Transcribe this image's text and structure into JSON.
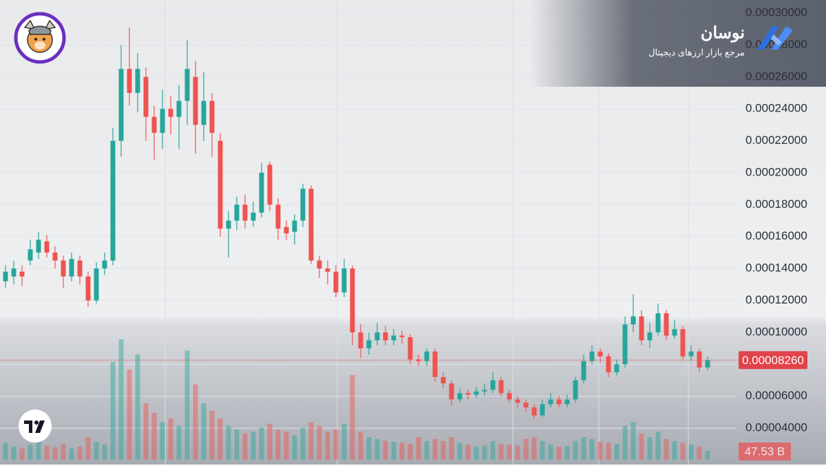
{
  "chart_data": {
    "type": "candlestick",
    "watermark": {
      "title": "نوسان",
      "subtitle": "مرجع بازار ارزهای دیجیتال"
    },
    "up_color": "#26a69a",
    "down_color": "#ef5350",
    "grid": true,
    "ylim": [
      1.72e-05,
      0.0003082
    ],
    "yticks": [
      {
        "value": 0.0003,
        "label": "0.00030000"
      },
      {
        "value": 0.00028,
        "label": "0.00028000"
      },
      {
        "value": 0.00026,
        "label": "0.00026000"
      },
      {
        "value": 0.00024,
        "label": "0.00024000"
      },
      {
        "value": 0.00022,
        "label": "0.00022000"
      },
      {
        "value": 0.0002,
        "label": "0.00020000"
      },
      {
        "value": 0.00018,
        "label": "0.00018000"
      },
      {
        "value": 0.00016,
        "label": "0.00016000"
      },
      {
        "value": 0.00014,
        "label": "0.00014000"
      },
      {
        "value": 0.00012,
        "label": "0.00012000"
      },
      {
        "value": 0.0001,
        "label": "0.00010000"
      },
      {
        "value": 8e-05,
        "label": "0.00008000"
      },
      {
        "value": 6e-05,
        "label": "0.00006000"
      },
      {
        "value": 4e-05,
        "label": "0.00004000"
      }
    ],
    "last_price": {
      "value": 8.26e-05,
      "label": "0.00008260"
    },
    "last_volume": {
      "value": 47.53,
      "label": "47.53 B"
    },
    "open": [
      0.000132,
      0.000135,
      0.000138,
      0.000145,
      0.00015,
      0.000157,
      0.00015,
      0.000145,
      0.000135,
      0.000145,
      0.000135,
      0.00012,
      0.00014,
      0.000145,
      0.00022,
      0.000265,
      0.00025,
      0.00026,
      0.000235,
      0.000225,
      0.00024,
      0.000235,
      0.000245,
      0.00026,
      0.00023,
      0.000245,
      0.00022,
      0.000165,
      0.00017,
      0.00018,
      0.00017,
      0.000175,
      0.000205,
      0.00018,
      0.000166,
      0.000163,
      0.00017,
      0.00019,
      0.000145,
      0.00014,
      0.000138,
      0.000125,
      0.00014,
      0.0001,
      9e-05,
      9.5e-05,
      0.0001,
      9.5e-05,
      9.8e-05,
      9.7e-05,
      8.3e-05,
      8.2e-05,
      8.8e-05,
      7.2e-05,
      6.8e-05,
      5.8e-05,
      6.2e-05,
      6.1e-05,
      6.3e-05,
      6.4e-05,
      7e-05,
      6.2e-05,
      5.8e-05,
      5.6e-05,
      5.3e-05,
      4.8e-05,
      5.5e-05,
      5.8e-05,
      5.5e-05,
      5.8e-05,
      7e-05,
      8.2e-05,
      8.8e-05,
      8.5e-05,
      7.5e-05,
      8e-05,
      0.000105,
      0.00011,
      9.5e-05,
      0.0001,
      0.000112,
      9.8e-05,
      0.000102,
      8.5e-05,
      8.8e-05,
      7.8e-05
    ],
    "high": [
      0.000142,
      0.000145,
      0.000142,
      0.000158,
      0.000163,
      0.000161,
      0.000154,
      0.000148,
      0.00015,
      0.000148,
      0.000138,
      0.000144,
      0.00015,
      0.000228,
      0.00028,
      0.000291,
      0.000275,
      0.000266,
      0.000242,
      0.000252,
      0.000248,
      0.000255,
      0.000283,
      0.00027,
      0.000263,
      0.00025,
      0.000225,
      0.000176,
      0.000185,
      0.000186,
      0.000182,
      0.000206,
      0.000207,
      0.000184,
      0.00017,
      0.000174,
      0.000193,
      0.000192,
      0.000148,
      0.000145,
      0.000142,
      0.000146,
      0.000142,
      0.000105,
      0.0001,
      0.000106,
      0.000104,
      0.000102,
      0.000101,
      9.9e-05,
      8.6e-05,
      9e-05,
      9e-05,
      7.5e-05,
      7e-05,
      6.5e-05,
      6.4e-05,
      6.6e-05,
      6.8e-05,
      7.5e-05,
      7.2e-05,
      6.4e-05,
      6e-05,
      5.8e-05,
      5.5e-05,
      5.8e-05,
      6.2e-05,
      6e-05,
      6.1e-05,
      7.2e-05,
      8.6e-05,
      9.2e-05,
      9e-05,
      8.7e-05,
      8.3e-05,
      0.00011,
      0.000124,
      0.000114,
      0.000106,
      0.000118,
      0.000114,
      0.000108,
      0.000104,
      9.2e-05,
      9e-05,
      8.5e-05
    ],
    "low": [
      0.000128,
      0.00013,
      0.000129,
      0.000142,
      0.000146,
      0.000147,
      0.00014,
      0.000128,
      0.000132,
      0.00013,
      0.000116,
      0.000118,
      0.000136,
      0.000142,
      0.00021,
      0.000242,
      0.000238,
      0.00022,
      0.000208,
      0.000215,
      0.000224,
      0.000215,
      0.00023,
      0.000212,
      0.00022,
      0.00021,
      0.00016,
      0.000147,
      0.000164,
      0.000165,
      0.000166,
      0.000172,
      0.000176,
      0.000158,
      0.000158,
      0.000155,
      0.000166,
      0.000143,
      0.000134,
      0.00013,
      0.000122,
      0.000122,
      9.2e-05,
      8.4e-05,
      8.6e-05,
      9.2e-05,
      9.2e-05,
      9.2e-05,
      9.3e-05,
      8e-05,
      7.9e-05,
      7.9e-05,
      6.9e-05,
      6.5e-05,
      5.4e-05,
      5.6e-05,
      5.8e-05,
      5.9e-05,
      6e-05,
      6.2e-05,
      6e-05,
      5.6e-05,
      5.3e-05,
      5e-05,
      4.6e-05,
      4.7e-05,
      5.3e-05,
      5.3e-05,
      5.3e-05,
      5.6e-05,
      6.8e-05,
      8e-05,
      8.1e-05,
      7.2e-05,
      7.3e-05,
      7.8e-05,
      0.0001,
      9.2e-05,
      9e-05,
      9.8e-05,
      9.5e-05,
      9.6e-05,
      8.3e-05,
      8.2e-05,
      7.5e-05,
      7.6e-05
    ],
    "close": [
      0.000138,
      0.00014,
      0.000135,
      0.000152,
      0.000158,
      0.00015,
      0.000145,
      0.000135,
      0.000146,
      0.000135,
      0.00012,
      0.00014,
      0.000145,
      0.00022,
      0.000265,
      0.00025,
      0.000265,
      0.000235,
      0.000225,
      0.00024,
      0.000235,
      0.000245,
      0.000265,
      0.00023,
      0.000245,
      0.000225,
      0.000165,
      0.00017,
      0.00018,
      0.00017,
      0.000175,
      0.0002,
      0.00018,
      0.000165,
      0.000162,
      0.00017,
      0.00019,
      0.000145,
      0.00014,
      0.000138,
      0.000125,
      0.00014,
      0.0001,
      9e-05,
      9.5e-05,
      0.0001,
      9.5e-05,
      9.8e-05,
      9.7e-05,
      8.3e-05,
      8.2e-05,
      8.8e-05,
      7.2e-05,
      6.8e-05,
      5.8e-05,
      6.2e-05,
      6.1e-05,
      6.3e-05,
      6.4e-05,
      7e-05,
      6.2e-05,
      5.8e-05,
      5.6e-05,
      5.3e-05,
      4.8e-05,
      5.5e-05,
      5.8e-05,
      5.5e-05,
      5.8e-05,
      7e-05,
      8.2e-05,
      8.8e-05,
      8.5e-05,
      7.5e-05,
      8e-05,
      0.000105,
      0.00011,
      9.5e-05,
      0.0001,
      0.000112,
      9.8e-05,
      0.000102,
      8.5e-05,
      8.8e-05,
      7.8e-05,
      8.26e-05
    ],
    "volume": [
      90,
      70,
      60,
      80,
      110,
      75,
      65,
      85,
      60,
      70,
      120,
      95,
      80,
      520,
      640,
      480,
      560,
      300,
      250,
      200,
      220,
      180,
      580,
      400,
      300,
      260,
      220,
      180,
      160,
      140,
      150,
      170,
      190,
      160,
      150,
      130,
      170,
      200,
      180,
      150,
      160,
      190,
      450,
      150,
      120,
      110,
      100,
      95,
      90,
      85,
      120,
      100,
      110,
      100,
      120,
      90,
      80,
      70,
      75,
      100,
      85,
      80,
      75,
      110,
      120,
      100,
      80,
      70,
      75,
      100,
      120,
      110,
      95,
      90,
      85,
      180,
      200,
      140,
      120,
      150,
      110,
      100,
      90,
      80,
      70,
      47.53
    ]
  }
}
